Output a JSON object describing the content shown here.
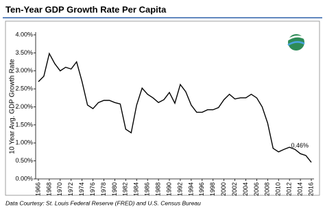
{
  "chart_data": {
    "type": "line",
    "title": "Ten-Year GDP Growth Rate Per Capita",
    "y_label": "10 Year Avg. GDP Growth Rate",
    "source": "Data Courtesy: St. Louis Federal Reserve (FRED) and U.S. Census Bureau",
    "annotation": "0.46%",
    "x": [
      1966,
      1967,
      1968,
      1969,
      1970,
      1971,
      1972,
      1973,
      1974,
      1975,
      1976,
      1977,
      1978,
      1979,
      1980,
      1981,
      1982,
      1983,
      1984,
      1985,
      1986,
      1987,
      1988,
      1989,
      1990,
      1991,
      1992,
      1993,
      1994,
      1995,
      1996,
      1997,
      1998,
      1999,
      2000,
      2001,
      2002,
      2003,
      2004,
      2005,
      2006,
      2007,
      2008,
      2009,
      2010,
      2011,
      2012,
      2013,
      2014,
      2015,
      2016
    ],
    "series": [
      {
        "color": "#000000",
        "values": [
          2.7,
          2.85,
          3.48,
          3.2,
          3.0,
          3.1,
          3.05,
          3.25,
          2.7,
          2.05,
          1.95,
          2.12,
          2.18,
          2.18,
          2.12,
          2.08,
          1.38,
          1.28,
          2.05,
          2.52,
          2.35,
          2.25,
          2.12,
          2.2,
          2.4,
          2.1,
          2.62,
          2.42,
          2.05,
          1.85,
          1.85,
          1.92,
          1.92,
          1.98,
          2.2,
          2.35,
          2.22,
          2.25,
          2.25,
          2.35,
          2.25,
          2.0,
          1.55,
          0.85,
          0.75,
          0.82,
          0.88,
          0.82,
          0.7,
          0.65,
          0.46
        ]
      }
    ],
    "xlim": [
      1965.5,
      2016.5
    ],
    "xticks": [
      1966,
      1968,
      1970,
      1972,
      1974,
      1976,
      1978,
      1980,
      1982,
      1984,
      1986,
      1988,
      1990,
      1992,
      1994,
      1996,
      1998,
      2000,
      2002,
      2004,
      2006,
      2008,
      2010,
      2012,
      2014,
      2016
    ],
    "ylim": [
      0,
      4
    ],
    "yticks": [
      {
        "value": 0,
        "label": "0.00%"
      },
      {
        "value": 0.5,
        "label": "0.50%"
      },
      {
        "value": 1,
        "label": "1.00%"
      },
      {
        "value": 1.5,
        "label": "1.50%"
      },
      {
        "value": 2,
        "label": "2.00%"
      },
      {
        "value": 2.5,
        "label": "2.50%"
      },
      {
        "value": 3,
        "label": "3.00%"
      },
      {
        "value": 3.5,
        "label": "3.50%"
      },
      {
        "value": 4,
        "label": "4.00%"
      }
    ],
    "grid": false
  }
}
